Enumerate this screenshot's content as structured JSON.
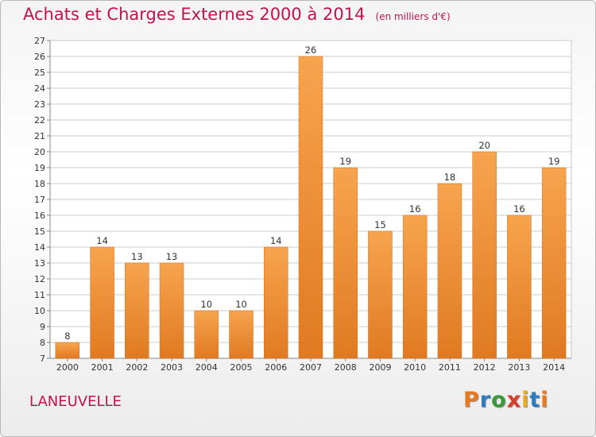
{
  "header": {
    "title": "Achats et Charges Externes 2000 à 2014",
    "subtitle": "(en milliers d'€)"
  },
  "footer": {
    "location": "LANEUVELLE",
    "logo": "Proxiti"
  },
  "colors": {
    "title": "#c5124e",
    "bar_light": "#f7a44e",
    "bar_dark": "#e07a22",
    "grid": "#cccccc",
    "logo_letters": [
      "#e8791f",
      "#2e7bc0",
      "#3a9b3a",
      "#d93a2a",
      "#e8a81f",
      "#2e7bc0",
      "#e8791f"
    ]
  },
  "chart_data": {
    "type": "bar",
    "title": "Achats et Charges Externes 2000 à 2014",
    "subtitle": "(en milliers d'€)",
    "xlabel": "",
    "ylabel": "",
    "categories": [
      "2000",
      "2001",
      "2002",
      "2003",
      "2004",
      "2005",
      "2006",
      "2007",
      "2008",
      "2009",
      "2010",
      "2011",
      "2012",
      "2013",
      "2014"
    ],
    "values": [
      8,
      14,
      13,
      13,
      10,
      10,
      14,
      26,
      19,
      15,
      16,
      18,
      20,
      16,
      19
    ],
    "ylim": [
      7,
      27
    ],
    "ytick_step": 1,
    "grid": true,
    "legend": "none"
  }
}
